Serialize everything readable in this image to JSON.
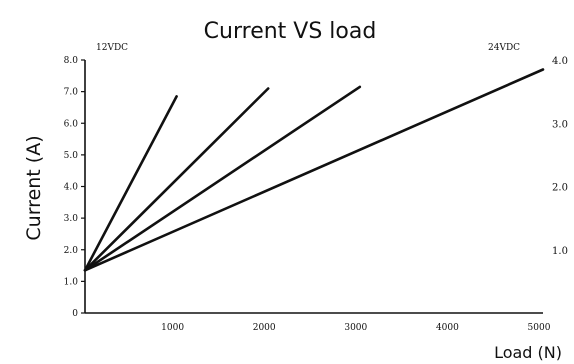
{
  "chart_data": {
    "type": "line",
    "title": "Current VS load",
    "xlabel": "Load (N)",
    "ylabel": "Current (A)",
    "left_axis_label": "12VDC",
    "right_axis_label": "24VDC",
    "xlim": [
      0,
      5000
    ],
    "ylim": [
      0,
      8.0
    ],
    "ylim_right": [
      0,
      4.0
    ],
    "x_ticks": [
      1000,
      2000,
      3000,
      4000,
      5000
    ],
    "x_tick_labels": [
      "1000",
      "2000",
      "3000",
      "4000",
      "5000"
    ],
    "y_ticks": [
      0,
      1.0,
      2.0,
      3.0,
      4.0,
      5.0,
      6.0,
      7.0,
      8.0
    ],
    "y_tick_labels": [
      "0",
      "1.0",
      "2.0",
      "3.0",
      "4.0",
      "5.0",
      "6.0",
      "7.0",
      "8.0"
    ],
    "y_right_ticks": [
      1.0,
      2.0,
      3.0,
      4.0
    ],
    "y_right_tick_labels": [
      "1.0",
      "2.0",
      "3.0",
      "4.0"
    ],
    "grid": false,
    "series": [
      {
        "x": [
          0,
          1000
        ],
        "y": [
          1.35,
          6.85
        ]
      },
      {
        "x": [
          0,
          2000
        ],
        "y": [
          1.35,
          7.1
        ]
      },
      {
        "x": [
          0,
          3000
        ],
        "y": [
          1.35,
          7.15
        ]
      },
      {
        "x": [
          0,
          5000
        ],
        "y": [
          1.35,
          7.7
        ]
      }
    ]
  }
}
